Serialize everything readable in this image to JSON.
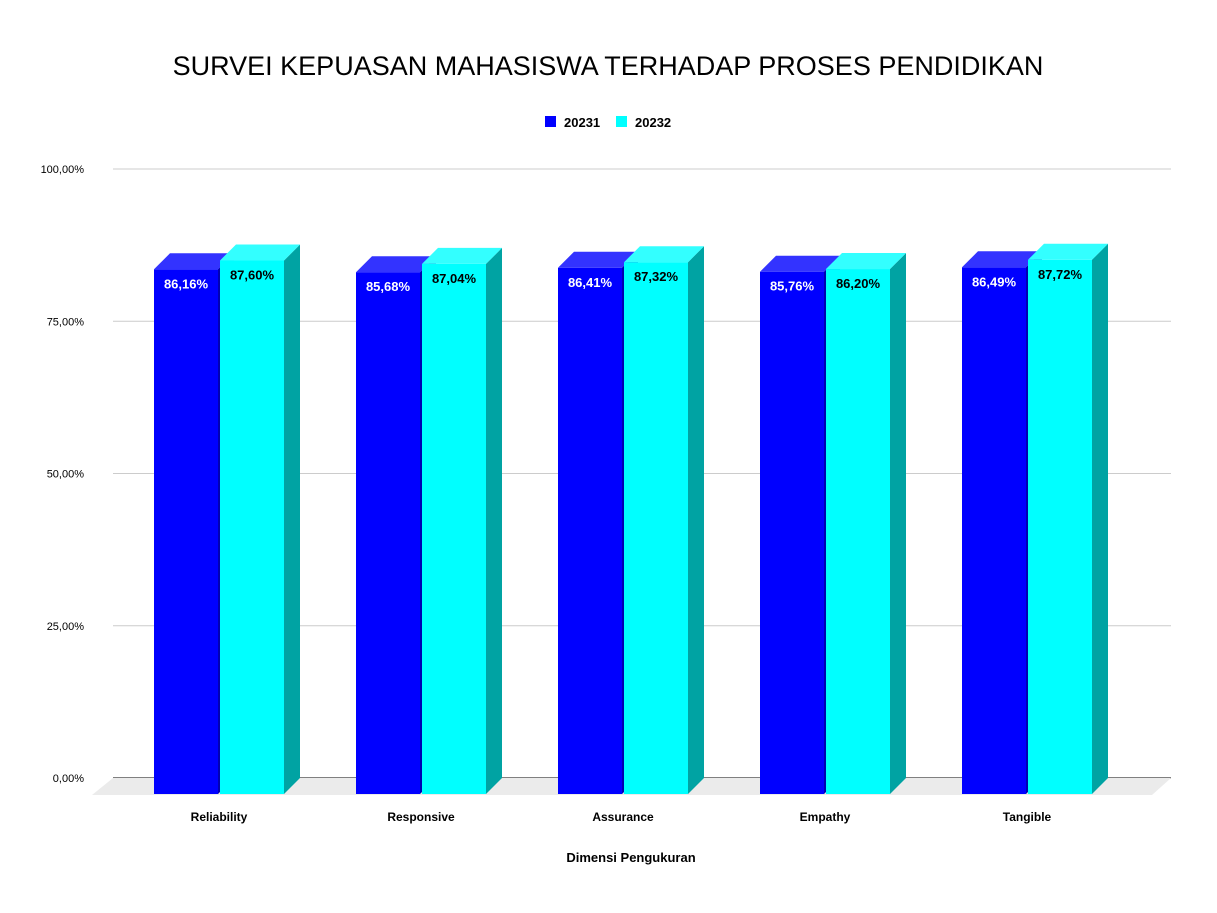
{
  "chart_data": {
    "type": "bar",
    "title": "SURVEI KEPUASAN MAHASISWA TERHADAP PROSES PENDIDIKAN",
    "xlabel": "Dimensi Pengukuran",
    "ylabel": "",
    "categories": [
      "Reliability",
      "Responsive",
      "Assurance",
      "Empathy",
      "Tangible"
    ],
    "series": [
      {
        "name": "20231",
        "values": [
          86.16,
          85.68,
          86.41,
          85.76,
          86.49
        ],
        "labels": [
          "86,16%",
          "85,68%",
          "86,41%",
          "85,76%",
          "86,49%"
        ],
        "color": "#0000ff",
        "side_color": "#0000b3",
        "top_color": "#3333ff",
        "label_color": "#ffffff"
      },
      {
        "name": "20232",
        "values": [
          87.6,
          87.04,
          87.32,
          86.2,
          87.72
        ],
        "labels": [
          "87,60%",
          "87,04%",
          "87,32%",
          "86,20%",
          "87,72%"
        ],
        "color": "#00ffff",
        "side_color": "#00a3a3",
        "top_color": "#33ffff",
        "label_color": "#000000"
      }
    ],
    "ylim": [
      0,
      100
    ],
    "yticks": [
      {
        "value": 0,
        "label": "0,00%"
      },
      {
        "value": 25,
        "label": "25,00%"
      },
      {
        "value": 50,
        "label": "50,00%"
      },
      {
        "value": 75,
        "label": "75,00%"
      },
      {
        "value": 100,
        "label": "100,00%"
      }
    ],
    "grid": true,
    "legend_position": "top-center",
    "style": "3d-column"
  }
}
